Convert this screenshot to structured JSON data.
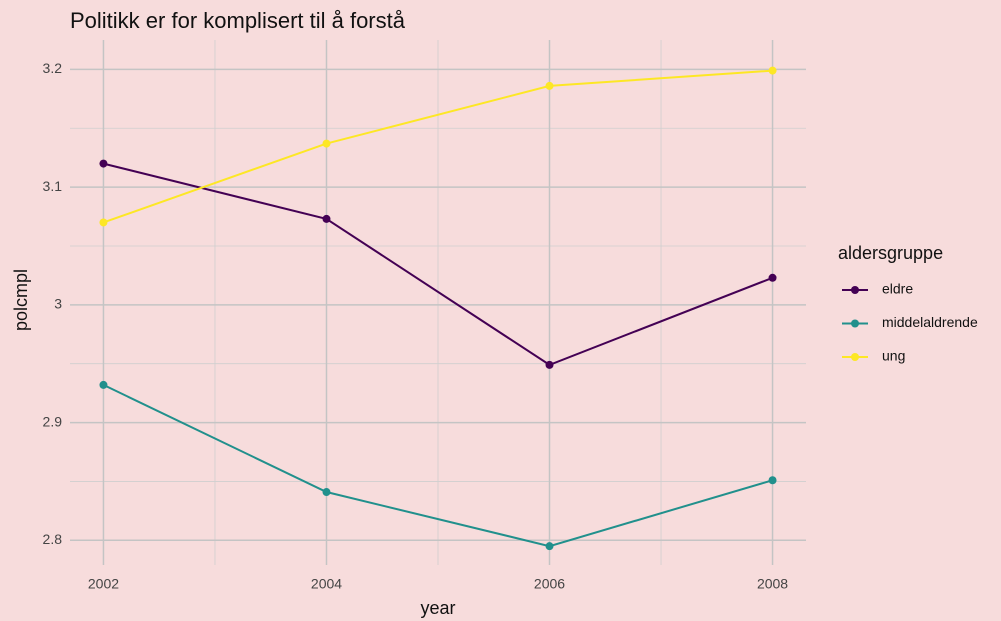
{
  "chart_data": {
    "type": "line",
    "title": "Politikk er for komplisert til å forstå",
    "x_label": "year",
    "y_label": "polcmpl",
    "legend_title": "aldersgruppe",
    "x": [
      2002,
      2004,
      2006,
      2008
    ],
    "series": [
      {
        "name": "eldre",
        "color": "#440154",
        "values": [
          3.12,
          3.073,
          2.949,
          3.023
        ]
      },
      {
        "name": "middelaldrende",
        "color": "#21908c",
        "values": [
          2.932,
          2.841,
          2.795,
          2.851
        ]
      },
      {
        "name": "ung",
        "color": "#fde725",
        "values": [
          3.07,
          3.137,
          3.186,
          3.199
        ]
      }
    ],
    "xlim": [
      2001.7,
      2008.3
    ],
    "xticks": [
      2002,
      2004,
      2006,
      2008
    ],
    "ylim": [
      2.779,
      3.225
    ],
    "yticks": [
      2.8,
      2.9,
      3.0,
      3.1,
      3.2
    ],
    "grid": true,
    "legend": "right"
  }
}
